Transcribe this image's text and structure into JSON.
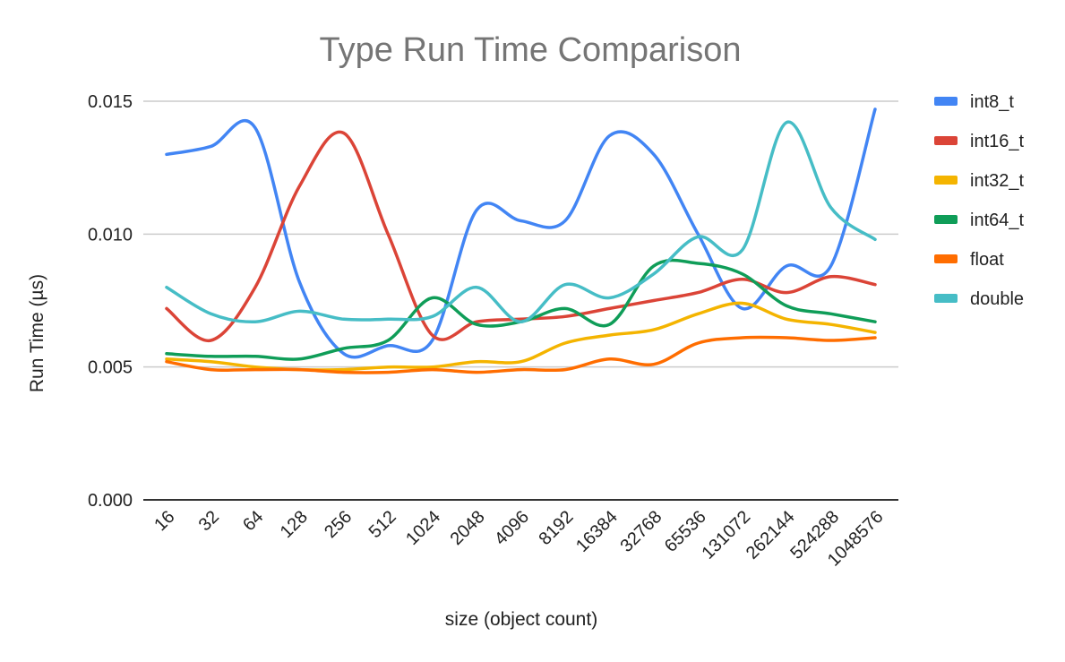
{
  "chart_data": {
    "type": "line",
    "title": "Type Run Time Comparison",
    "xlabel": "size (object count)",
    "ylabel": "Run Time (µs)",
    "ylim": [
      0,
      0.015
    ],
    "yticks": [
      "0.000",
      "0.005",
      "0.010",
      "0.015"
    ],
    "grid": true,
    "legend_position": "right",
    "categories": [
      "16",
      "32",
      "64",
      "128",
      "256",
      "512",
      "1024",
      "2048",
      "4096",
      "8192",
      "16384",
      "32768",
      "65536",
      "131072",
      "262144",
      "524288",
      "1048576"
    ],
    "series": [
      {
        "name": "int8_t",
        "color": "#4285F4",
        "values": [
          0.013,
          0.0133,
          0.014,
          0.0082,
          0.0055,
          0.0058,
          0.006,
          0.0109,
          0.0105,
          0.0105,
          0.0137,
          0.013,
          0.01,
          0.0072,
          0.0088,
          0.0088,
          0.0147
        ]
      },
      {
        "name": "int16_t",
        "color": "#DB4437",
        "values": [
          0.0072,
          0.006,
          0.008,
          0.0118,
          0.0138,
          0.01,
          0.0062,
          0.0067,
          0.0068,
          0.0069,
          0.0072,
          0.0075,
          0.0078,
          0.0083,
          0.0078,
          0.0084,
          0.0081
        ]
      },
      {
        "name": "int32_t",
        "color": "#F4B400",
        "values": [
          0.0053,
          0.0052,
          0.005,
          0.0049,
          0.0049,
          0.005,
          0.005,
          0.0052,
          0.0052,
          0.0059,
          0.0062,
          0.0064,
          0.007,
          0.0074,
          0.0068,
          0.0066,
          0.0063
        ]
      },
      {
        "name": "int64_t",
        "color": "#0F9D58",
        "values": [
          0.0055,
          0.0054,
          0.0054,
          0.0053,
          0.0057,
          0.006,
          0.0076,
          0.0066,
          0.0067,
          0.0072,
          0.0066,
          0.0088,
          0.0089,
          0.0085,
          0.0073,
          0.007,
          0.0067
        ]
      },
      {
        "name": "float",
        "color": "#FF6D00",
        "values": [
          0.0052,
          0.0049,
          0.0049,
          0.0049,
          0.0048,
          0.0048,
          0.0049,
          0.0048,
          0.0049,
          0.0049,
          0.0053,
          0.0051,
          0.0059,
          0.0061,
          0.0061,
          0.006,
          0.0061
        ]
      },
      {
        "name": "double",
        "color": "#46BDC6",
        "values": [
          0.008,
          0.007,
          0.0067,
          0.0071,
          0.0068,
          0.0068,
          0.0069,
          0.008,
          0.0067,
          0.0081,
          0.0076,
          0.0085,
          0.0099,
          0.0094,
          0.0142,
          0.011,
          0.0098
        ]
      }
    ]
  }
}
